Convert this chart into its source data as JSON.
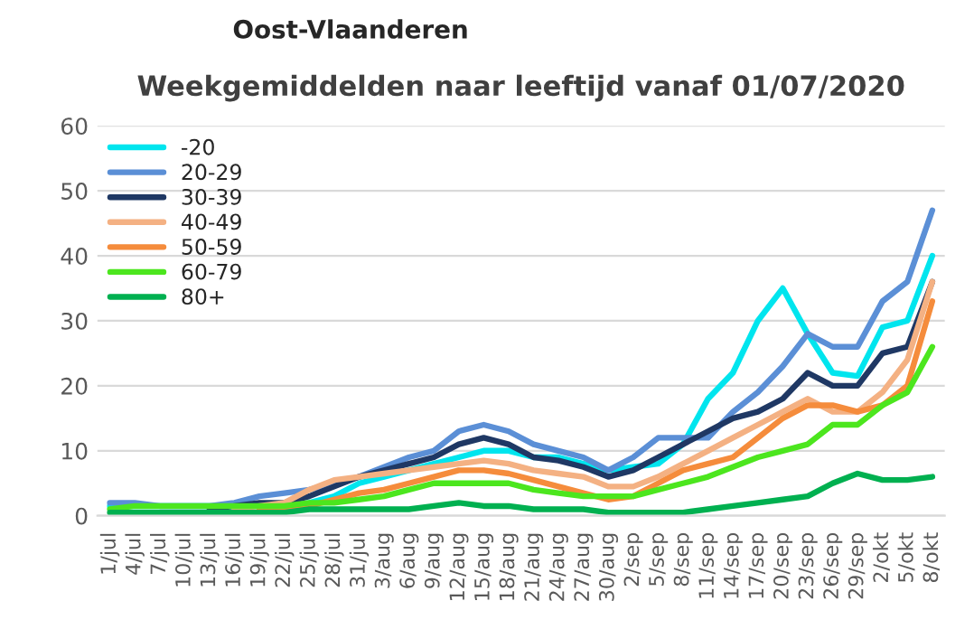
{
  "chart_data": {
    "type": "line",
    "title": "Oost-Vlaanderen",
    "subtitle": "Weekgemiddelden naar leeftijd vanaf 01/07/2020",
    "categories": [
      "1/jul",
      "4/jul",
      "7/jul",
      "10/jul",
      "13/jul",
      "16/jul",
      "19/jul",
      "22/jul",
      "25/jul",
      "28/jul",
      "31/jul",
      "3/aug",
      "6/aug",
      "9/aug",
      "12/aug",
      "15/aug",
      "18/aug",
      "21/aug",
      "24/aug",
      "27/aug",
      "30/aug",
      "2/sep",
      "5/sep",
      "8/sep",
      "11/sep",
      "14/sep",
      "17/sep",
      "20/sep",
      "23/sep",
      "26/sep",
      "29/sep",
      "2/okt",
      "5/okt",
      "8/okt"
    ],
    "series": [
      {
        "name": "-20",
        "color": "#00e5ee",
        "values": [
          1.5,
          1.5,
          1.5,
          1.5,
          1.5,
          1.5,
          1.5,
          1.5,
          2,
          3,
          5,
          6,
          7,
          8,
          9,
          10,
          10,
          9,
          9,
          8,
          7,
          7.5,
          8,
          11,
          18,
          22,
          30,
          35,
          28,
          22,
          21.5,
          29,
          30,
          40
        ]
      },
      {
        "name": "20-29",
        "color": "#5b8fd6",
        "values": [
          2,
          2,
          1.5,
          1.5,
          1.5,
          2,
          3,
          3.5,
          4,
          5,
          6,
          7.5,
          9,
          10,
          13,
          14,
          13,
          11,
          10,
          9,
          7,
          9,
          12,
          12,
          12,
          16,
          19,
          23,
          28,
          26,
          26,
          33,
          36,
          47
        ]
      },
      {
        "name": "30-39",
        "color": "#1f3864",
        "values": [
          null,
          null,
          null,
          null,
          1,
          1.5,
          2,
          2,
          3,
          4.5,
          6,
          7,
          8,
          9,
          11,
          12,
          11,
          9,
          8.5,
          7.5,
          6,
          7,
          9,
          11,
          13,
          15,
          16,
          18,
          22,
          20,
          20,
          25,
          26,
          36
        ]
      },
      {
        "name": "40-49",
        "color": "#f4b183",
        "values": [
          null,
          null,
          null,
          null,
          null,
          1,
          1.5,
          2,
          4,
          5.5,
          6,
          6.5,
          7,
          7.5,
          8,
          8.5,
          8,
          7,
          6.5,
          6,
          4.5,
          4.5,
          6,
          8,
          10,
          12,
          14,
          16,
          18,
          16,
          16,
          19,
          24,
          36
        ]
      },
      {
        "name": "50-59",
        "color": "#f58c3c",
        "values": [
          null,
          null,
          null,
          null,
          null,
          null,
          1,
          1,
          1.5,
          2.5,
          3.5,
          4,
          5,
          6,
          7,
          7,
          6.5,
          5.5,
          4.5,
          3.5,
          2.5,
          3,
          5,
          7,
          8,
          9,
          12,
          15,
          17,
          17,
          16,
          17,
          20,
          33
        ]
      },
      {
        "name": "60-79",
        "color": "#4ce61e",
        "values": [
          1,
          1.5,
          1.5,
          1.5,
          1.5,
          1.5,
          1.5,
          1.5,
          2,
          2,
          2.5,
          3,
          4,
          5,
          5,
          5,
          5,
          4,
          3.5,
          3,
          3,
          3,
          4,
          5,
          6,
          7.5,
          9,
          10,
          11,
          14,
          14,
          17,
          19,
          26
        ]
      },
      {
        "name": "80+",
        "color": "#00b050",
        "values": [
          0.5,
          0.5,
          0.5,
          0.5,
          0.5,
          0.5,
          0.5,
          0.5,
          1,
          1,
          1,
          1,
          1,
          1.5,
          2,
          1.5,
          1.5,
          1,
          1,
          1,
          0.5,
          0.5,
          0.5,
          0.5,
          1,
          1.5,
          2,
          2.5,
          3,
          5,
          6.5,
          5.5,
          5.5,
          6
        ]
      }
    ],
    "ylim": [
      0,
      60
    ],
    "yticks": [
      0,
      10,
      20,
      30,
      40,
      50,
      60
    ],
    "grid": "y",
    "legend": "top left",
    "marker": "none",
    "line_style": "solid"
  }
}
